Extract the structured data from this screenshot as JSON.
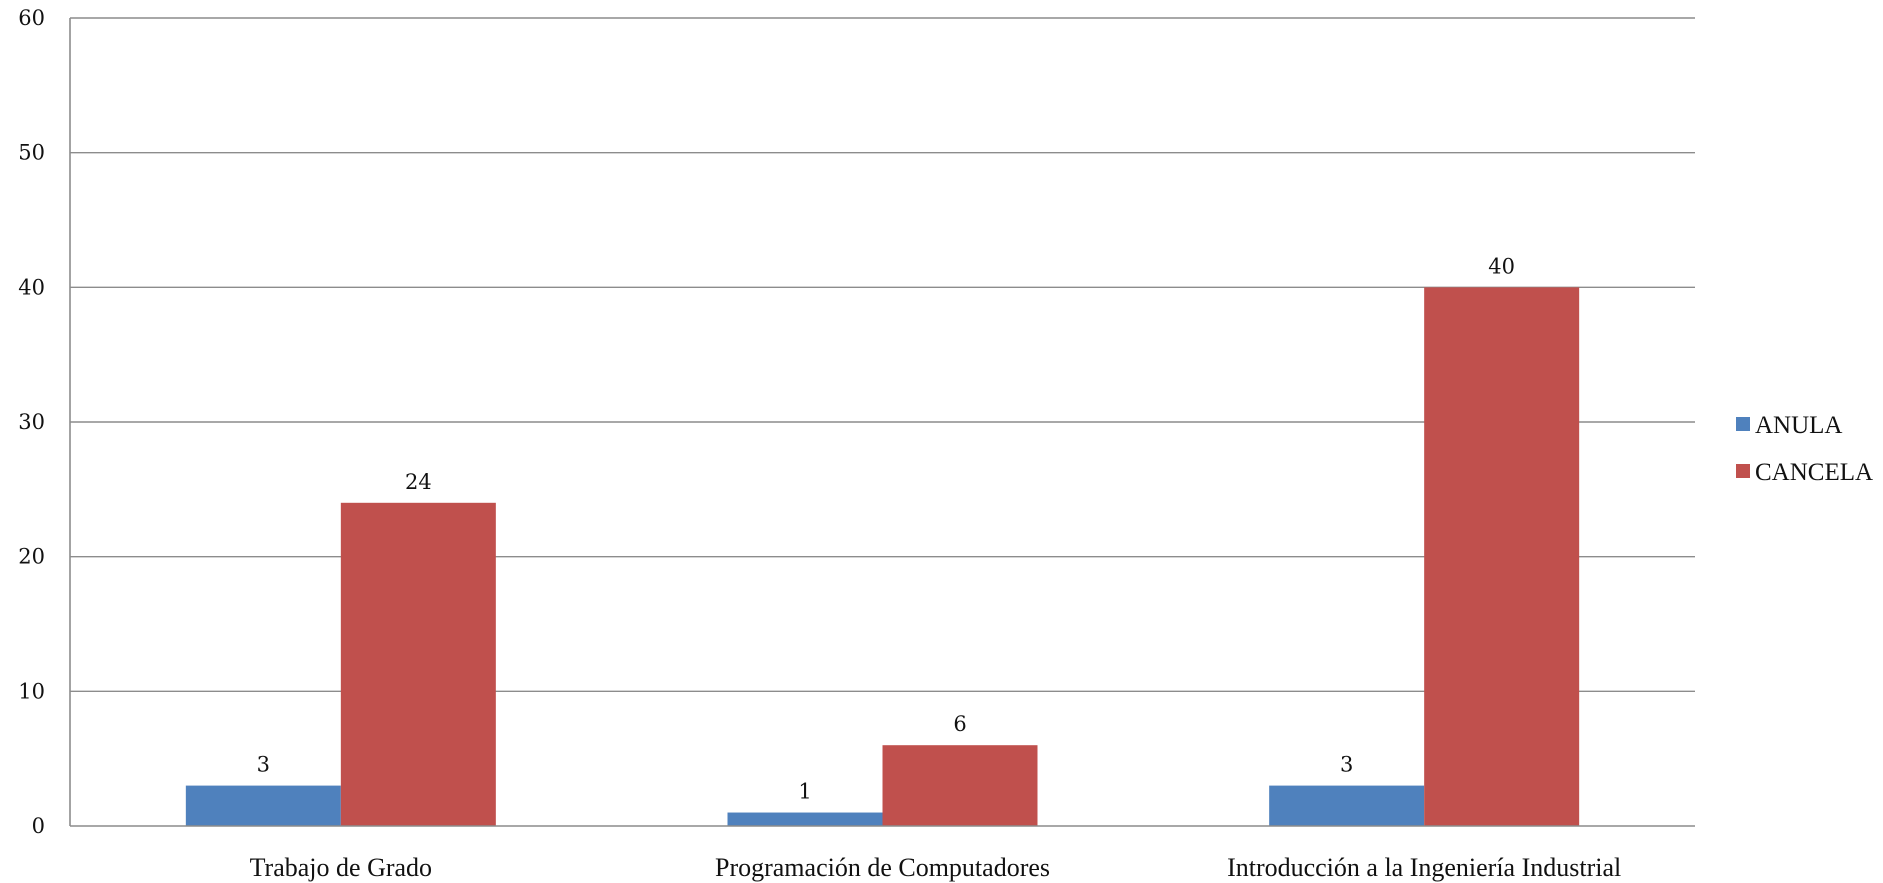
{
  "chart_data": {
    "type": "bar",
    "title": "",
    "xlabel": "",
    "ylabel": "",
    "categories": [
      "Trabajo de Grado",
      "Programación de Computadores",
      "Introducción a la Ingeniería Industrial"
    ],
    "series": [
      {
        "name": "ANULA",
        "values": [
          3,
          1,
          3
        ],
        "color": "#4f81bd"
      },
      {
        "name": "CANCELA",
        "values": [
          24,
          6,
          40
        ],
        "color": "#c0504d"
      }
    ],
    "ylim": [
      0,
      60
    ],
    "yticks": [
      0,
      10,
      20,
      30,
      40,
      50,
      60
    ],
    "data_labels": true,
    "grid": true,
    "legend_position": "right"
  }
}
